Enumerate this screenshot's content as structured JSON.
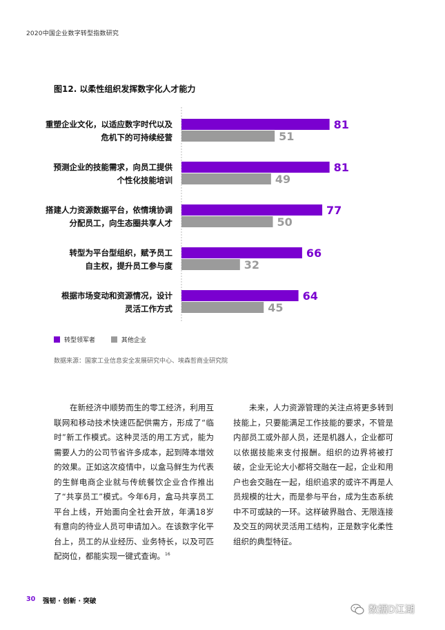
{
  "header": {
    "running_title": "2020中国企业数字转型指数研究"
  },
  "figure": {
    "title": "图12. 以柔性组织发挥数字化人才能力"
  },
  "chart_data": {
    "type": "bar",
    "orientation": "horizontal",
    "categories": [
      [
        "重塑企业文化，以适应数字时代以及",
        "危机下的可持续经营"
      ],
      [
        "预测企业的技能需求，向员工提供",
        "个性化技能培训"
      ],
      [
        "搭建人力资源数据平台，依情境协调",
        "分配员工，向生态圈共享人才"
      ],
      [
        "转型为平台型组织，赋予员工",
        "自主权，提升员工参与度"
      ],
      [
        "根据市场变动和资源情况，设计",
        "灵活工作方式"
      ]
    ],
    "series": [
      {
        "name": "转型领军者",
        "color": "#7a00d0",
        "values": [
          81,
          81,
          77,
          66,
          64
        ]
      },
      {
        "name": "其他企业",
        "color": "#9b9b9b",
        "values": [
          51,
          49,
          50,
          32,
          45
        ]
      }
    ],
    "xlim": [
      0,
      100
    ],
    "grid": false,
    "legend": "bottom-left"
  },
  "source": "数据来源：国家工业信息安全发展研究中心、埃森哲商业研究院",
  "body": {
    "left": "在新经济中顺势而生的零工经济，利用互联网和移动技术快速匹配供需方，形成了“临时”新工作模式。这种灵活的用工方式，能为需要人力的公司节省许多成本，起到降本增效的效果。正如这次疫情中，以盒马鲜生为代表的生鲜电商企业就与传统餐饮企业合作推出了“共享员工”模式。今年6月，盒马共享员工平台上线，开始面向全社会开放，年满18岁有意向的待业人员可申请加入。在该数字化平台上，员工的从业经历、业务特长，以及可匹配岗位，都能实现一键式查询。",
    "left_footnote": "16",
    "right": "未来，人力资源管理的关注点将更多转到技能上，只要能满足工作技能的要求，不管是内部员工或外部人员，还是机器人，企业都可以依据技能来支付报酬。组织的边界将被打破，企业无论大小都将交融在一起，企业和用户也会交融在一起，组织追求的或许不再是人员规模的壮大，而是参与平台，成为生态系统中不可或缺的一环。这样破界融合、无限连接及交互的网状灵活用工结构，正是数字化柔性组织的典型特征。"
  },
  "footer": {
    "page_number": "30",
    "tagline": "强韧 · 创新 · 突破"
  },
  "watermark": {
    "text": "数据D江湖",
    "icon": "wechat-icon"
  }
}
